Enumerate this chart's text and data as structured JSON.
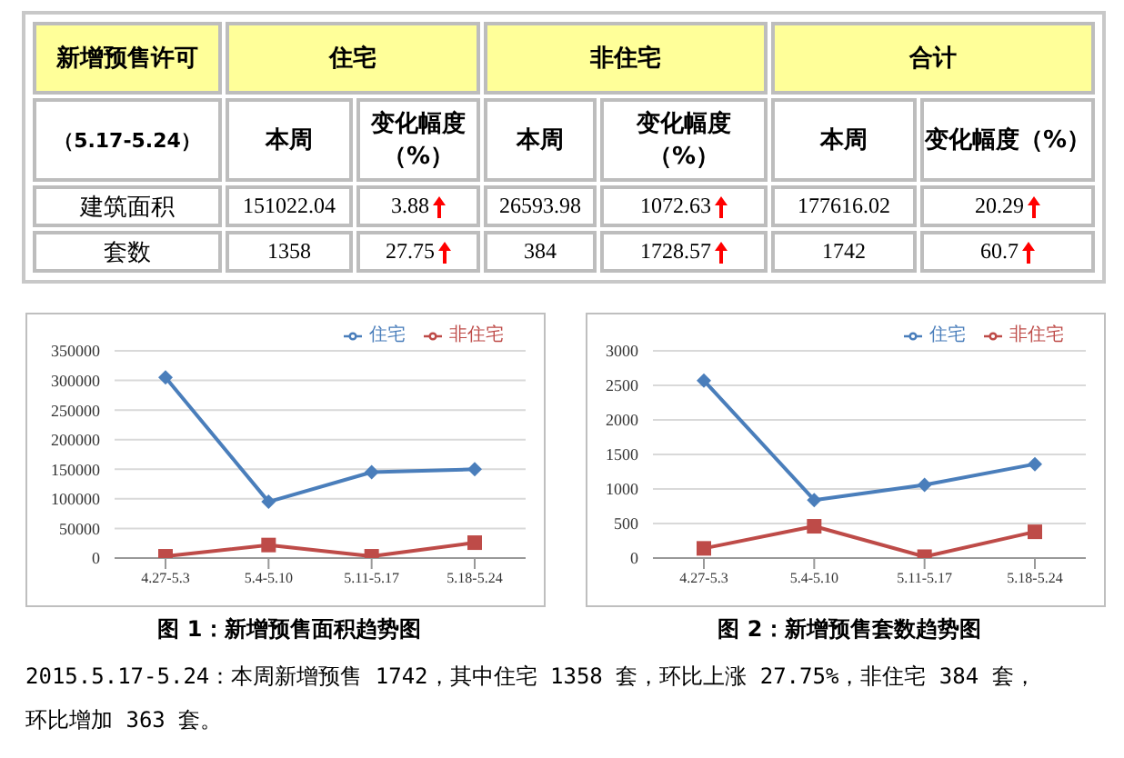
{
  "chart_data": [
    {
      "type": "other",
      "annotations": [
        "新增预售许可",
        "住宅",
        "非住宅",
        "合计",
        "（5.17-5.24）",
        "本周",
        "变化幅度（%）",
        "本周",
        "变化幅度（%）",
        "本周",
        "变化幅度（%）",
        "建筑面积",
        "151022.04",
        "3.88",
        "26593.98",
        "1072.63",
        "177616.02",
        "20.29",
        "套数",
        "1358",
        "27.75",
        "384",
        "1728.57",
        "1742",
        "60.7"
      ]
    },
    {
      "type": "line",
      "title": "图 1：新增预售面积趋势图",
      "categories": [
        "4.27-5.3",
        "5.4-5.10",
        "5.11-5.17",
        "5.18-5.24"
      ],
      "series": [
        {
          "name": "住宅",
          "color": "#4a7ebb",
          "marker": "diamond",
          "values": [
            305000,
            95000,
            145000,
            150000
          ]
        },
        {
          "name": "非住宅",
          "color": "#be4b48",
          "marker": "square",
          "values": [
            3000,
            22000,
            3000,
            26000
          ]
        }
      ],
      "ylim": [
        0,
        350000
      ],
      "yticks": [
        0,
        50000,
        100000,
        150000,
        200000,
        250000,
        300000,
        350000
      ],
      "grid": "y",
      "legend": "top right"
    },
    {
      "type": "line",
      "title": "图 2：新增预售套数趋势图",
      "categories": [
        "4.27-5.3",
        "5.4-5.10",
        "5.11-5.17",
        "5.18-5.24"
      ],
      "series": [
        {
          "name": "住宅",
          "color": "#4a7ebb",
          "marker": "diamond",
          "values": [
            2570,
            840,
            1060,
            1360
          ]
        },
        {
          "name": "非住宅",
          "color": "#be4b48",
          "marker": "square",
          "values": [
            140,
            460,
            20,
            380
          ]
        }
      ],
      "ylim": [
        0,
        3000
      ],
      "yticks": [
        0,
        500,
        1000,
        1500,
        2000,
        2500,
        3000
      ],
      "grid": "y",
      "legend": "top right"
    },
    {
      "type": "other",
      "annotations": [
        "2015.5.17-5.24：本周新增预售 1742，其中住宅 1358 套，环比上涨 27.75%，非住宅 384 套，环比增加 363 套。"
      ]
    }
  ]
}
